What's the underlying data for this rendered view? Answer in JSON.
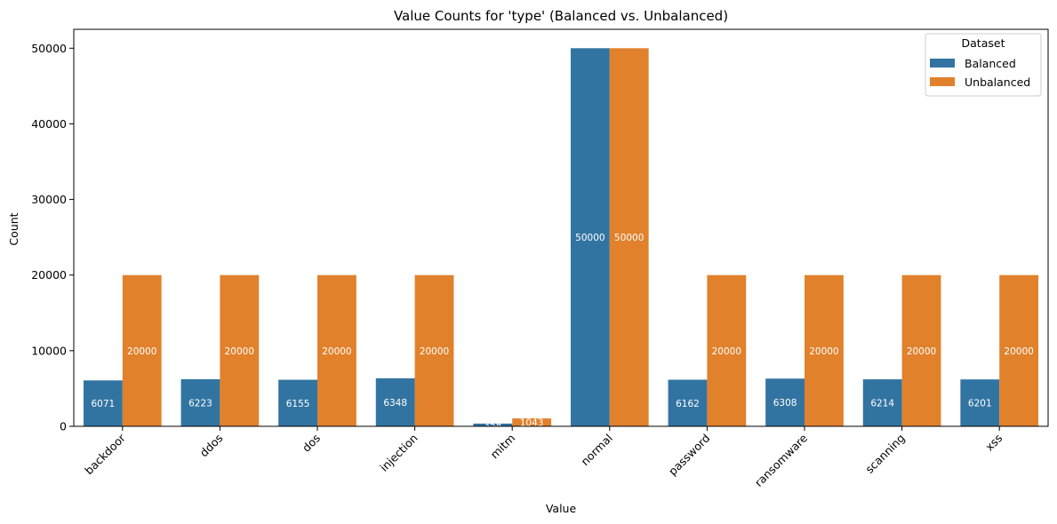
{
  "chart_data": {
    "type": "bar",
    "title": "Value Counts for 'type' (Balanced vs. Unbalanced)",
    "xlabel": "Value",
    "ylabel": "Count",
    "categories": [
      "backdoor",
      "ddos",
      "dos",
      "injection",
      "mitm",
      "normal",
      "password",
      "ransomware",
      "scanning",
      "xss"
    ],
    "series": [
      {
        "name": "Balanced",
        "color": "#3274a1",
        "values": [
          6071,
          6223,
          6155,
          6348,
          358,
          50000,
          6162,
          6308,
          6214,
          6201
        ]
      },
      {
        "name": "Unbalanced",
        "color": "#e1812c",
        "values": [
          20000,
          20000,
          20000,
          20000,
          1043,
          50000,
          20000,
          20000,
          20000,
          20000
        ]
      }
    ],
    "data_labels": [
      [
        "6071",
        "6223",
        "6155",
        "6348",
        "358",
        "50000",
        "6162",
        "6308",
        "6214",
        "6201"
      ],
      [
        "20000",
        "20000",
        "20000",
        "20000",
        "1043",
        "50000",
        "20000",
        "20000",
        "20000",
        "20000"
      ]
    ],
    "ylim": [
      0,
      52500
    ],
    "yticks": [
      0,
      10000,
      20000,
      30000,
      40000,
      50000
    ],
    "ytick_labels": [
      "0",
      "10000",
      "20000",
      "30000",
      "40000",
      "50000"
    ],
    "xtick_rotation": 45,
    "grid": false,
    "legend": {
      "title": "Dataset",
      "placement": "top-right"
    }
  }
}
